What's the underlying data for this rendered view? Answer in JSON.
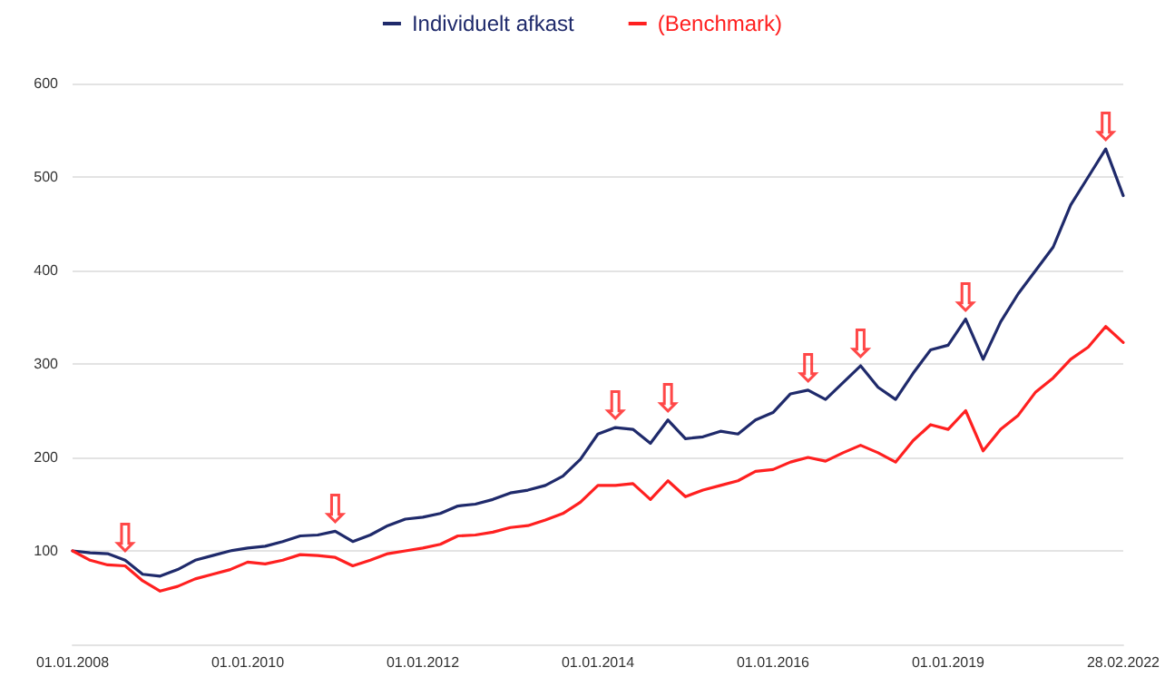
{
  "chart_data": {
    "type": "line",
    "categories": [
      "01.01.2008",
      null,
      null,
      null,
      null,
      null,
      null,
      null,
      null,
      null,
      "01.01.2010",
      null,
      null,
      null,
      null,
      null,
      null,
      null,
      null,
      null,
      "01.01.2012",
      null,
      null,
      null,
      null,
      null,
      null,
      null,
      null,
      null,
      "01.01.2014",
      null,
      null,
      null,
      null,
      null,
      null,
      null,
      null,
      null,
      "01.01.2016",
      null,
      null,
      null,
      null,
      null,
      null,
      null,
      null,
      null,
      "01.01.2019",
      null,
      null,
      null,
      null,
      null,
      null,
      null,
      null,
      null,
      "28.02.2022"
    ],
    "series": [
      {
        "name": "Individuelt afkast",
        "color": "#1f2a6b",
        "values": [
          100,
          98,
          97,
          90,
          75,
          73,
          80,
          90,
          95,
          100,
          103,
          105,
          110,
          116,
          117,
          121,
          110,
          117,
          127,
          134,
          136,
          140,
          148,
          150,
          155,
          162,
          165,
          170,
          180,
          198,
          225,
          232,
          230,
          215,
          240,
          220,
          222,
          228,
          225,
          240,
          248,
          268,
          272,
          262,
          280,
          298,
          275,
          262,
          290,
          315,
          320,
          348,
          305,
          345,
          375,
          400,
          425,
          470,
          500,
          530,
          480
        ]
      },
      {
        "name": "(Benchmark)",
        "color": "#ff2020",
        "values": [
          100,
          90,
          85,
          84,
          68,
          57,
          62,
          70,
          75,
          80,
          88,
          86,
          90,
          96,
          95,
          93,
          84,
          90,
          97,
          100,
          103,
          107,
          116,
          117,
          120,
          125,
          127,
          133,
          140,
          152,
          170,
          170,
          172,
          155,
          175,
          158,
          165,
          170,
          175,
          185,
          187,
          195,
          200,
          196,
          205,
          213,
          205,
          195,
          218,
          235,
          230,
          250,
          207,
          230,
          245,
          270,
          285,
          305,
          318,
          340,
          323
        ]
      }
    ],
    "annotations": [
      {
        "text": "⇩",
        "y": 90
      },
      {
        "text": "⇩",
        "y": 121
      },
      {
        "text": "⇩",
        "y": 232
      },
      {
        "text": "⇩",
        "y": 240
      },
      {
        "text": "⇩",
        "y": 272
      },
      {
        "text": "⇩",
        "y": 298
      },
      {
        "text": "⇩",
        "y": 348
      },
      {
        "text": "⇩",
        "y": 530
      }
    ],
    "ylim": [
      0,
      600
    ],
    "yticks": [
      100,
      200,
      300,
      400,
      500,
      600
    ],
    "grid": "y",
    "legend": "top",
    "marker": "none",
    "line_style": "solid"
  }
}
